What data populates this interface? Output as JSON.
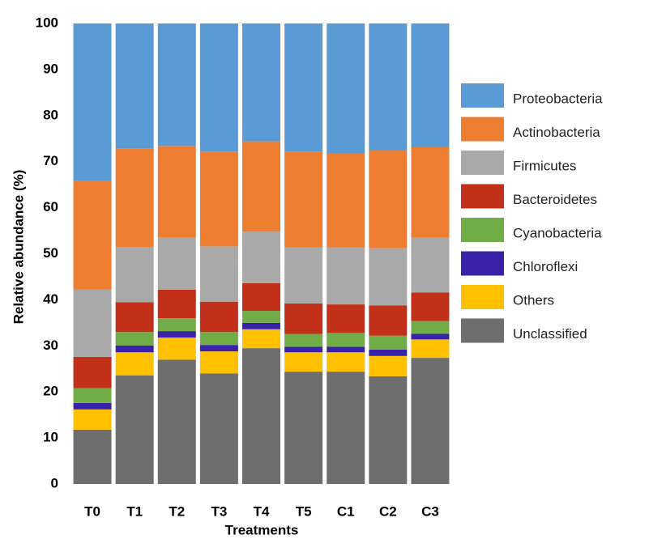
{
  "chart_data": {
    "type": "stacked_bar",
    "y_label": "Relative  abundance (%)",
    "x_label": "Treatments",
    "categories": [
      "T0",
      "T1",
      "T2",
      "T3",
      "T4",
      "T5",
      "C1",
      "C2",
      "C3"
    ],
    "ylim": [
      0,
      100
    ],
    "yticks": [
      0,
      10,
      20,
      30,
      40,
      50,
      60,
      70,
      80,
      90,
      100
    ],
    "legend": "right",
    "series": [
      {
        "name": "Proteobacteria",
        "color": "#5b9bd5",
        "values": [
          34.2,
          27.2,
          26.6,
          27.8,
          25.6,
          27.8,
          28.2,
          27.6,
          26.8
        ]
      },
      {
        "name": "Actinobacteria",
        "color": "#ed7d31",
        "values": [
          23.6,
          21.3,
          19.8,
          20.6,
          19.6,
          20.8,
          20.4,
          21.2,
          19.6
        ]
      },
      {
        "name": "Firmicutes",
        "color": "#a9a9a9",
        "values": [
          14.6,
          12.0,
          11.4,
          12.0,
          11.2,
          12.2,
          12.4,
          12.4,
          12.0
        ]
      },
      {
        "name": "Bacteroidetes",
        "color": "#c3301a",
        "values": [
          6.8,
          6.5,
          6.2,
          6.6,
          6.0,
          6.6,
          6.2,
          6.6,
          6.2
        ]
      },
      {
        "name": "Cyanobacteria",
        "color": "#70ad47",
        "values": [
          3.2,
          2.9,
          2.8,
          2.8,
          2.6,
          2.8,
          3.0,
          3.0,
          2.8
        ]
      },
      {
        "name": "Chloroflexi",
        "color": "#3a22a8",
        "values": [
          1.4,
          1.5,
          1.4,
          1.4,
          1.4,
          1.2,
          1.2,
          1.4,
          1.2
        ]
      },
      {
        "name": "Others",
        "color": "#ffc000",
        "values": [
          4.4,
          5.0,
          4.8,
          4.8,
          4.1,
          4.2,
          4.2,
          4.4,
          4.0
        ]
      },
      {
        "name": "Unclassified",
        "color": "#6e6e6e",
        "values": [
          11.8,
          23.6,
          27.0,
          24.0,
          29.5,
          24.4,
          24.4,
          23.4,
          27.4
        ]
      }
    ]
  }
}
